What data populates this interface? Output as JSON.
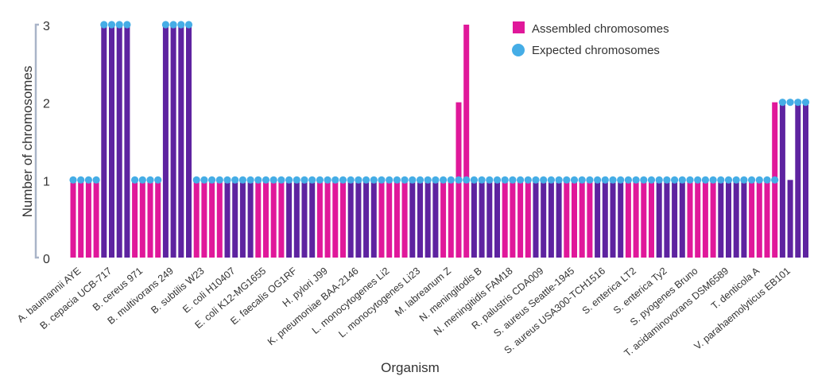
{
  "chart_data": {
    "type": "bar",
    "xlabel": "Organism",
    "ylabel": "Number of chromosomes",
    "ylim": [
      0,
      3
    ],
    "yticks": [
      "0",
      "1",
      "2",
      "3"
    ],
    "categories": [
      "A. baumannii AYE",
      "B. cepacia UCB-717",
      "B. cereus 971",
      "B. multivorans 249",
      "B. subtilis W23",
      "E. coli H10407",
      "E. coli K12-MG1655",
      "E. faecalis OG1RF",
      "H. pylori J99",
      "K. pneumoniae BAA-2146",
      "L. monocytogenes Li2",
      "L. monocytogenes Li23",
      "M. labreanum Z",
      "N. meningitodis B",
      "N. meningitidis FAM18",
      "R. palustris CDA009",
      "S. aureus Seattle-1945",
      "S. aureus USA300-TCH1516",
      "S. enterica LT2",
      "S. enterica Ty2",
      "S. pyogenes Bruno",
      "T. acidaminovorans DSM6589",
      "T. denticola A",
      "V. parahaemolyticus EB101"
    ],
    "replicates_per_category": 4,
    "series": [
      {
        "name": "Assembled chromosomes",
        "marker": "bar",
        "values": [
          [
            1,
            1,
            1,
            1
          ],
          [
            3,
            3,
            3,
            3
          ],
          [
            1,
            1,
            1,
            1
          ],
          [
            3,
            3,
            3,
            3
          ],
          [
            1,
            1,
            1,
            1
          ],
          [
            1,
            1,
            1,
            1
          ],
          [
            1,
            1,
            1,
            1
          ],
          [
            1,
            1,
            1,
            1
          ],
          [
            1,
            1,
            1,
            1
          ],
          [
            1,
            1,
            1,
            1
          ],
          [
            1,
            1,
            1,
            1
          ],
          [
            1,
            1,
            1,
            1
          ],
          [
            1,
            1,
            2,
            3
          ],
          [
            1,
            1,
            1,
            1
          ],
          [
            1,
            1,
            1,
            1
          ],
          [
            1,
            1,
            1,
            1
          ],
          [
            1,
            1,
            1,
            1
          ],
          [
            1,
            1,
            1,
            1
          ],
          [
            1,
            1,
            1,
            1
          ],
          [
            1,
            1,
            1,
            1
          ],
          [
            1,
            1,
            1,
            1
          ],
          [
            1,
            1,
            1,
            1
          ],
          [
            1,
            1,
            1,
            2
          ],
          [
            2,
            1,
            2,
            2
          ]
        ]
      },
      {
        "name": "Expected chromosomes",
        "marker": "dot",
        "values": [
          1,
          3,
          1,
          3,
          1,
          1,
          1,
          1,
          1,
          1,
          1,
          1,
          1,
          1,
          1,
          1,
          1,
          1,
          1,
          1,
          1,
          1,
          1,
          2
        ]
      }
    ],
    "colors": {
      "bar_even": "#e0189a",
      "bar_odd": "#5e23a0",
      "expected": "#45ade6",
      "axis": "#a9b4c8"
    },
    "legend": {
      "position": "top-right"
    },
    "grid": false
  }
}
